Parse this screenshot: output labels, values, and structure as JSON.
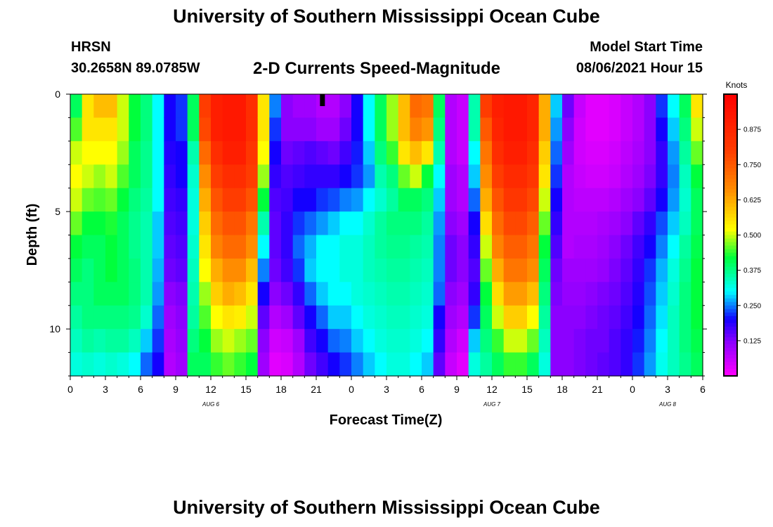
{
  "header": {
    "title": "University of Southern Mississippi Ocean Cube",
    "station": "HRSN",
    "coordinates": "30.2658N  89.0785W",
    "subtitle": "2-D Currents Speed-Magnitude",
    "start_label": "Model Start Time",
    "start_value": "08/06/2021 Hour 15"
  },
  "footer": {
    "title": "University of Southern Mississippi Ocean Cube"
  },
  "chart_data": {
    "type": "heatmap",
    "title": "2-D Currents Speed-Magnitude",
    "xlabel": "Forecast Time(Z)",
    "ylabel": "Depth (ft)",
    "x_tick_labels": [
      "0",
      "3",
      "6",
      "9",
      "12",
      "15",
      "18",
      "21",
      "0",
      "3",
      "6",
      "9",
      "12",
      "15",
      "18",
      "21",
      "0",
      "3",
      "6"
    ],
    "x_range_hours": [
      0,
      54
    ],
    "date_labels": [
      {
        "label": "AUG 6",
        "hour": 12
      },
      {
        "label": "AUG 7",
        "hour": 36
      },
      {
        "label": "AUG 8",
        "hour": 51
      }
    ],
    "y_range_ft": [
      0,
      12
    ],
    "y_tick_labels": [
      "0",
      "5",
      "10"
    ],
    "y_ticks": [
      0,
      5,
      10
    ],
    "colorbar": {
      "label": "Knots",
      "range": [
        0,
        1.0
      ],
      "tick_labels": [
        "0.875",
        "0.750",
        "0.625",
        "0.500",
        "0.375",
        "0.250",
        "0.125"
      ],
      "ticks": [
        0.875,
        0.75,
        0.625,
        0.5,
        0.375,
        0.25,
        0.125
      ]
    },
    "model_start_marker_hour": 21.5,
    "n_time_steps": 54,
    "n_depth_levels": 12,
    "columns": [
      {
        "hour": 0.5,
        "speed": [
          0.4,
          0.45,
          0.5,
          0.52,
          0.5,
          0.46,
          0.42,
          0.4,
          0.38,
          0.36,
          0.34,
          0.32
        ]
      },
      {
        "hour": 1.5,
        "speed": [
          0.55,
          0.55,
          0.52,
          0.5,
          0.46,
          0.42,
          0.4,
          0.38,
          0.38,
          0.38,
          0.36,
          0.33
        ]
      },
      {
        "hour": 2.5,
        "speed": [
          0.6,
          0.55,
          0.52,
          0.48,
          0.45,
          0.42,
          0.4,
          0.4,
          0.4,
          0.38,
          0.35,
          0.32
        ]
      },
      {
        "hour": 3.5,
        "speed": [
          0.6,
          0.55,
          0.52,
          0.5,
          0.46,
          0.43,
          0.42,
          0.42,
          0.4,
          0.38,
          0.36,
          0.33
        ]
      },
      {
        "hour": 4.5,
        "speed": [
          0.5,
          0.5,
          0.48,
          0.45,
          0.42,
          0.4,
          0.4,
          0.4,
          0.4,
          0.38,
          0.36,
          0.32
        ]
      },
      {
        "hour": 5.5,
        "speed": [
          0.42,
          0.42,
          0.4,
          0.4,
          0.38,
          0.37,
          0.37,
          0.38,
          0.38,
          0.37,
          0.34,
          0.3
        ]
      },
      {
        "hour": 6.5,
        "speed": [
          0.38,
          0.38,
          0.37,
          0.37,
          0.36,
          0.35,
          0.35,
          0.35,
          0.35,
          0.33,
          0.28,
          0.24
        ]
      },
      {
        "hour": 7.5,
        "speed": [
          0.3,
          0.3,
          0.3,
          0.3,
          0.3,
          0.28,
          0.28,
          0.27,
          0.26,
          0.24,
          0.22,
          0.2
        ]
      },
      {
        "hour": 8.5,
        "speed": [
          0.2,
          0.2,
          0.19,
          0.18,
          0.17,
          0.16,
          0.15,
          0.14,
          0.12,
          0.1,
          0.09,
          0.08
        ]
      },
      {
        "hour": 9.5,
        "speed": [
          0.22,
          0.22,
          0.2,
          0.2,
          0.18,
          0.17,
          0.16,
          0.15,
          0.13,
          0.12,
          0.11,
          0.1
        ]
      },
      {
        "hour": 10.5,
        "speed": [
          0.4,
          0.4,
          0.35,
          0.33,
          0.32,
          0.32,
          0.33,
          0.34,
          0.35,
          0.36,
          0.38,
          0.4
        ]
      },
      {
        "hour": 11.5,
        "speed": [
          0.8,
          0.78,
          0.72,
          0.66,
          0.62,
          0.58,
          0.55,
          0.52,
          0.48,
          0.45,
          0.42,
          0.4
        ]
      },
      {
        "hour": 12.5,
        "speed": [
          0.9,
          0.9,
          0.85,
          0.8,
          0.76,
          0.72,
          0.68,
          0.62,
          0.58,
          0.52,
          0.48,
          0.44
        ]
      },
      {
        "hour": 13.5,
        "speed": [
          0.92,
          0.92,
          0.9,
          0.85,
          0.8,
          0.76,
          0.72,
          0.66,
          0.62,
          0.55,
          0.5,
          0.46
        ]
      },
      {
        "hour": 14.5,
        "speed": [
          0.92,
          0.92,
          0.9,
          0.85,
          0.8,
          0.76,
          0.72,
          0.66,
          0.6,
          0.54,
          0.48,
          0.44
        ]
      },
      {
        "hour": 15.5,
        "speed": [
          0.85,
          0.85,
          0.82,
          0.8,
          0.76,
          0.7,
          0.66,
          0.6,
          0.55,
          0.5,
          0.46,
          0.42
        ]
      },
      {
        "hour": 16.5,
        "speed": [
          0.55,
          0.55,
          0.52,
          0.48,
          0.42,
          0.35,
          0.3,
          0.25,
          0.2,
          0.15,
          0.12,
          0.1
        ]
      },
      {
        "hour": 17.5,
        "speed": [
          0.25,
          0.22,
          0.2,
          0.18,
          0.16,
          0.15,
          0.15,
          0.14,
          0.12,
          0.08,
          0.05,
          0.03
        ]
      },
      {
        "hour": 18.5,
        "speed": [
          0.12,
          0.12,
          0.14,
          0.16,
          0.17,
          0.18,
          0.18,
          0.17,
          0.14,
          0.1,
          0.06,
          0.04
        ]
      },
      {
        "hour": 19.5,
        "speed": [
          0.1,
          0.12,
          0.15,
          0.17,
          0.2,
          0.22,
          0.24,
          0.22,
          0.18,
          0.15,
          0.1,
          0.08
        ]
      },
      {
        "hour": 20.5,
        "speed": [
          0.1,
          0.12,
          0.16,
          0.18,
          0.2,
          0.24,
          0.27,
          0.28,
          0.24,
          0.2,
          0.17,
          0.14
        ]
      },
      {
        "hour": 21.5,
        "speed": [
          0.08,
          0.1,
          0.15,
          0.18,
          0.22,
          0.26,
          0.3,
          0.3,
          0.28,
          0.24,
          0.2,
          0.17
        ]
      },
      {
        "hour": 22.5,
        "speed": [
          0.08,
          0.1,
          0.14,
          0.18,
          0.23,
          0.28,
          0.3,
          0.3,
          0.3,
          0.28,
          0.24,
          0.2
        ]
      },
      {
        "hour": 23.5,
        "speed": [
          0.12,
          0.14,
          0.17,
          0.2,
          0.25,
          0.3,
          0.32,
          0.32,
          0.3,
          0.28,
          0.25,
          0.22
        ]
      },
      {
        "hour": 24.5,
        "speed": [
          0.2,
          0.2,
          0.21,
          0.22,
          0.26,
          0.3,
          0.32,
          0.32,
          0.32,
          0.3,
          0.28,
          0.25
        ]
      },
      {
        "hour": 25.5,
        "speed": [
          0.3,
          0.3,
          0.28,
          0.26,
          0.3,
          0.33,
          0.34,
          0.34,
          0.33,
          0.32,
          0.3,
          0.28
        ]
      },
      {
        "hour": 26.5,
        "speed": [
          0.4,
          0.4,
          0.38,
          0.35,
          0.33,
          0.36,
          0.36,
          0.35,
          0.34,
          0.33,
          0.32,
          0.3
        ]
      },
      {
        "hour": 27.5,
        "speed": [
          0.48,
          0.48,
          0.44,
          0.38,
          0.36,
          0.38,
          0.37,
          0.36,
          0.35,
          0.34,
          0.33,
          0.32
        ]
      },
      {
        "hour": 28.5,
        "speed": [
          0.6,
          0.6,
          0.55,
          0.46,
          0.4,
          0.38,
          0.37,
          0.36,
          0.35,
          0.34,
          0.33,
          0.32
        ]
      },
      {
        "hour": 29.5,
        "speed": [
          0.72,
          0.68,
          0.6,
          0.5,
          0.4,
          0.38,
          0.36,
          0.35,
          0.34,
          0.33,
          0.32,
          0.3
        ]
      },
      {
        "hour": 30.5,
        "speed": [
          0.7,
          0.65,
          0.55,
          0.42,
          0.38,
          0.36,
          0.35,
          0.34,
          0.33,
          0.32,
          0.3,
          0.28
        ]
      },
      {
        "hour": 31.5,
        "speed": [
          0.4,
          0.38,
          0.35,
          0.3,
          0.28,
          0.26,
          0.25,
          0.25,
          0.24,
          0.2,
          0.18,
          0.15
        ]
      },
      {
        "hour": 32.5,
        "speed": [
          0.08,
          0.08,
          0.08,
          0.1,
          0.1,
          0.12,
          0.14,
          0.14,
          0.12,
          0.1,
          0.08,
          0.06
        ]
      },
      {
        "hour": 33.5,
        "speed": [
          0.06,
          0.06,
          0.06,
          0.08,
          0.08,
          0.1,
          0.12,
          0.12,
          0.1,
          0.08,
          0.05,
          0.03
        ]
      },
      {
        "hour": 34.5,
        "speed": [
          0.35,
          0.35,
          0.3,
          0.28,
          0.24,
          0.2,
          0.18,
          0.16,
          0.18,
          0.22,
          0.28,
          0.32
        ]
      },
      {
        "hour": 35.5,
        "speed": [
          0.8,
          0.75,
          0.7,
          0.66,
          0.62,
          0.56,
          0.5,
          0.46,
          0.42,
          0.4,
          0.38,
          0.36
        ]
      },
      {
        "hour": 36.5,
        "speed": [
          0.9,
          0.88,
          0.85,
          0.8,
          0.76,
          0.72,
          0.68,
          0.62,
          0.56,
          0.5,
          0.44,
          0.4
        ]
      },
      {
        "hour": 37.5,
        "speed": [
          0.92,
          0.92,
          0.9,
          0.86,
          0.82,
          0.78,
          0.74,
          0.7,
          0.64,
          0.58,
          0.5,
          0.44
        ]
      },
      {
        "hour": 38.5,
        "speed": [
          0.92,
          0.92,
          0.9,
          0.86,
          0.82,
          0.78,
          0.74,
          0.7,
          0.64,
          0.58,
          0.5,
          0.44
        ]
      },
      {
        "hour": 39.5,
        "speed": [
          0.88,
          0.88,
          0.85,
          0.82,
          0.78,
          0.74,
          0.7,
          0.66,
          0.6,
          0.52,
          0.46,
          0.4
        ]
      },
      {
        "hour": 40.5,
        "speed": [
          0.62,
          0.62,
          0.58,
          0.55,
          0.5,
          0.46,
          0.42,
          0.4,
          0.38,
          0.36,
          0.34,
          0.32
        ]
      },
      {
        "hour": 41.5,
        "speed": [
          0.28,
          0.26,
          0.24,
          0.22,
          0.2,
          0.18,
          0.16,
          0.14,
          0.13,
          0.12,
          0.12,
          0.12
        ]
      },
      {
        "hour": 42.5,
        "speed": [
          0.14,
          0.12,
          0.1,
          0.08,
          0.08,
          0.08,
          0.08,
          0.1,
          0.11,
          0.12,
          0.12,
          0.12
        ]
      },
      {
        "hour": 43.5,
        "speed": [
          0.06,
          0.05,
          0.05,
          0.06,
          0.07,
          0.08,
          0.09,
          0.1,
          0.11,
          0.12,
          0.13,
          0.13
        ]
      },
      {
        "hour": 44.5,
        "speed": [
          0.03,
          0.03,
          0.04,
          0.05,
          0.07,
          0.08,
          0.09,
          0.1,
          0.12,
          0.13,
          0.14,
          0.14
        ]
      },
      {
        "hour": 45.5,
        "speed": [
          0.03,
          0.03,
          0.04,
          0.05,
          0.07,
          0.09,
          0.1,
          0.11,
          0.13,
          0.14,
          0.14,
          0.15
        ]
      },
      {
        "hour": 46.5,
        "speed": [
          0.04,
          0.04,
          0.05,
          0.06,
          0.08,
          0.1,
          0.12,
          0.13,
          0.14,
          0.15,
          0.16,
          0.16
        ]
      },
      {
        "hour": 47.5,
        "speed": [
          0.06,
          0.06,
          0.07,
          0.08,
          0.1,
          0.12,
          0.14,
          0.15,
          0.16,
          0.17,
          0.18,
          0.18
        ]
      },
      {
        "hour": 48.5,
        "speed": [
          0.08,
          0.08,
          0.09,
          0.1,
          0.12,
          0.15,
          0.17,
          0.18,
          0.19,
          0.2,
          0.21,
          0.22
        ]
      },
      {
        "hour": 49.5,
        "speed": [
          0.12,
          0.12,
          0.12,
          0.13,
          0.15,
          0.18,
          0.2,
          0.22,
          0.23,
          0.24,
          0.25,
          0.26
        ]
      },
      {
        "hour": 50.5,
        "speed": [
          0.22,
          0.2,
          0.18,
          0.18,
          0.2,
          0.23,
          0.25,
          0.27,
          0.28,
          0.29,
          0.3,
          0.31
        ]
      },
      {
        "hour": 51.5,
        "speed": [
          0.3,
          0.28,
          0.26,
          0.25,
          0.26,
          0.28,
          0.3,
          0.32,
          0.33,
          0.34,
          0.34,
          0.34
        ]
      },
      {
        "hour": 52.5,
        "speed": [
          0.4,
          0.38,
          0.36,
          0.34,
          0.33,
          0.34,
          0.36,
          0.37,
          0.38,
          0.38,
          0.38,
          0.37
        ]
      },
      {
        "hour": 53.5,
        "speed": [
          0.55,
          0.5,
          0.46,
          0.42,
          0.4,
          0.4,
          0.41,
          0.42,
          0.42,
          0.42,
          0.41,
          0.4
        ]
      }
    ]
  }
}
